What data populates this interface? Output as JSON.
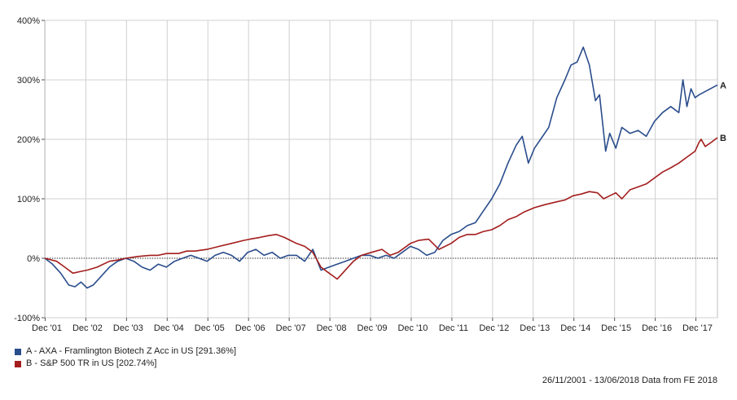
{
  "chart_data": {
    "type": "line",
    "y_unit": "%",
    "ylim": [
      -100,
      400
    ],
    "y_ticks": [
      {
        "value": 400,
        "label": "400%"
      },
      {
        "value": 300,
        "label": "300%"
      },
      {
        "value": 200,
        "label": "200%"
      },
      {
        "value": 100,
        "label": "100%"
      },
      {
        "value": 0,
        "label": "0%"
      },
      {
        "value": -100,
        "label": "-100%"
      }
    ],
    "xlim": [
      2001.91,
      2018.45
    ],
    "x_ticks": [
      {
        "value": 2001.92,
        "label": "Dec '01"
      },
      {
        "value": 2002.92,
        "label": "Dec '02"
      },
      {
        "value": 2003.92,
        "label": "Dec '03"
      },
      {
        "value": 2004.92,
        "label": "Dec '04"
      },
      {
        "value": 2005.92,
        "label": "Dec '05"
      },
      {
        "value": 2006.92,
        "label": "Dec '06"
      },
      {
        "value": 2007.92,
        "label": "Dec '07"
      },
      {
        "value": 2008.92,
        "label": "Dec '08"
      },
      {
        "value": 2009.92,
        "label": "Dec '09"
      },
      {
        "value": 2010.92,
        "label": "Dec '10"
      },
      {
        "value": 2011.92,
        "label": "Dec '11"
      },
      {
        "value": 2012.92,
        "label": "Dec '12"
      },
      {
        "value": 2013.92,
        "label": "Dec '13"
      },
      {
        "value": 2014.92,
        "label": "Dec '14"
      },
      {
        "value": 2015.92,
        "label": "Dec '15"
      },
      {
        "value": 2016.92,
        "label": "Dec '16"
      },
      {
        "value": 2017.92,
        "label": "Dec '17"
      }
    ],
    "grid": true,
    "zero_line": "dotted",
    "series": [
      {
        "id": "A",
        "name": "A - AXA - Framlington Biotech Z Acc in US [291.36%]",
        "end_label": "A",
        "color": "#2a4d8c",
        "points": [
          [
            2001.91,
            0
          ],
          [
            2002.1,
            -10
          ],
          [
            2002.3,
            -25
          ],
          [
            2002.5,
            -45
          ],
          [
            2002.65,
            -48
          ],
          [
            2002.8,
            -40
          ],
          [
            2002.95,
            -50
          ],
          [
            2003.1,
            -45
          ],
          [
            2003.3,
            -30
          ],
          [
            2003.5,
            -15
          ],
          [
            2003.7,
            -5
          ],
          [
            2003.9,
            0
          ],
          [
            2004.1,
            -5
          ],
          [
            2004.3,
            -15
          ],
          [
            2004.5,
            -20
          ],
          [
            2004.7,
            -10
          ],
          [
            2004.9,
            -15
          ],
          [
            2005.1,
            -5
          ],
          [
            2005.3,
            0
          ],
          [
            2005.5,
            5
          ],
          [
            2005.7,
            0
          ],
          [
            2005.9,
            -5
          ],
          [
            2006.1,
            5
          ],
          [
            2006.3,
            10
          ],
          [
            2006.5,
            5
          ],
          [
            2006.7,
            -5
          ],
          [
            2006.9,
            10
          ],
          [
            2007.1,
            15
          ],
          [
            2007.3,
            5
          ],
          [
            2007.5,
            10
          ],
          [
            2007.7,
            0
          ],
          [
            2007.9,
            5
          ],
          [
            2008.1,
            5
          ],
          [
            2008.3,
            -5
          ],
          [
            2008.5,
            15
          ],
          [
            2008.7,
            -20
          ],
          [
            2008.9,
            -15
          ],
          [
            2009.1,
            -10
          ],
          [
            2009.3,
            -5
          ],
          [
            2009.5,
            0
          ],
          [
            2009.7,
            5
          ],
          [
            2009.9,
            5
          ],
          [
            2010.1,
            0
          ],
          [
            2010.3,
            5
          ],
          [
            2010.5,
            0
          ],
          [
            2010.7,
            10
          ],
          [
            2010.9,
            20
          ],
          [
            2011.1,
            15
          ],
          [
            2011.3,
            5
          ],
          [
            2011.5,
            10
          ],
          [
            2011.7,
            30
          ],
          [
            2011.9,
            40
          ],
          [
            2012.1,
            45
          ],
          [
            2012.3,
            55
          ],
          [
            2012.5,
            60
          ],
          [
            2012.7,
            80
          ],
          [
            2012.9,
            100
          ],
          [
            2013.1,
            125
          ],
          [
            2013.3,
            160
          ],
          [
            2013.5,
            190
          ],
          [
            2013.65,
            205
          ],
          [
            2013.8,
            160
          ],
          [
            2013.95,
            185
          ],
          [
            2014.1,
            200
          ],
          [
            2014.3,
            220
          ],
          [
            2014.5,
            270
          ],
          [
            2014.7,
            300
          ],
          [
            2014.85,
            325
          ],
          [
            2015.0,
            330
          ],
          [
            2015.15,
            355
          ],
          [
            2015.3,
            325
          ],
          [
            2015.45,
            265
          ],
          [
            2015.55,
            275
          ],
          [
            2015.7,
            180
          ],
          [
            2015.8,
            210
          ],
          [
            2015.95,
            185
          ],
          [
            2016.1,
            220
          ],
          [
            2016.3,
            210
          ],
          [
            2016.5,
            215
          ],
          [
            2016.7,
            205
          ],
          [
            2016.9,
            230
          ],
          [
            2017.1,
            245
          ],
          [
            2017.3,
            255
          ],
          [
            2017.5,
            245
          ],
          [
            2017.6,
            300
          ],
          [
            2017.7,
            255
          ],
          [
            2017.8,
            285
          ],
          [
            2017.9,
            270
          ],
          [
            2018.0,
            275
          ],
          [
            2018.45,
            291.36
          ]
        ]
      },
      {
        "id": "B",
        "name": "B - S&P 500 TR in US [202.74%]",
        "end_label": "B",
        "color": "#a31d1d",
        "points": [
          [
            2001.91,
            0
          ],
          [
            2002.2,
            -5
          ],
          [
            2002.4,
            -15
          ],
          [
            2002.6,
            -25
          ],
          [
            2002.8,
            -22
          ],
          [
            2002.95,
            -20
          ],
          [
            2003.2,
            -15
          ],
          [
            2003.5,
            -5
          ],
          [
            2003.7,
            -3
          ],
          [
            2003.9,
            0
          ],
          [
            2004.2,
            3
          ],
          [
            2004.5,
            5
          ],
          [
            2004.7,
            5
          ],
          [
            2004.9,
            8
          ],
          [
            2005.2,
            8
          ],
          [
            2005.4,
            12
          ],
          [
            2005.6,
            12
          ],
          [
            2005.9,
            15
          ],
          [
            2006.2,
            20
          ],
          [
            2006.5,
            25
          ],
          [
            2006.8,
            30
          ],
          [
            2006.95,
            32
          ],
          [
            2007.2,
            35
          ],
          [
            2007.4,
            38
          ],
          [
            2007.6,
            40
          ],
          [
            2007.8,
            35
          ],
          [
            2007.95,
            30
          ],
          [
            2008.1,
            25
          ],
          [
            2008.3,
            20
          ],
          [
            2008.5,
            10
          ],
          [
            2008.7,
            -15
          ],
          [
            2008.9,
            -25
          ],
          [
            2009.0,
            -30
          ],
          [
            2009.1,
            -35
          ],
          [
            2009.3,
            -20
          ],
          [
            2009.5,
            -5
          ],
          [
            2009.7,
            5
          ],
          [
            2009.95,
            10
          ],
          [
            2010.2,
            15
          ],
          [
            2010.4,
            5
          ],
          [
            2010.6,
            10
          ],
          [
            2010.9,
            25
          ],
          [
            2011.1,
            30
          ],
          [
            2011.35,
            32
          ],
          [
            2011.6,
            15
          ],
          [
            2011.9,
            25
          ],
          [
            2012.1,
            35
          ],
          [
            2012.3,
            40
          ],
          [
            2012.5,
            40
          ],
          [
            2012.7,
            45
          ],
          [
            2012.9,
            48
          ],
          [
            2013.1,
            55
          ],
          [
            2013.3,
            65
          ],
          [
            2013.5,
            70
          ],
          [
            2013.7,
            78
          ],
          [
            2013.95,
            85
          ],
          [
            2014.2,
            90
          ],
          [
            2014.5,
            95
          ],
          [
            2014.7,
            98
          ],
          [
            2014.9,
            105
          ],
          [
            2015.1,
            108
          ],
          [
            2015.3,
            112
          ],
          [
            2015.5,
            110
          ],
          [
            2015.65,
            100
          ],
          [
            2015.8,
            105
          ],
          [
            2015.95,
            110
          ],
          [
            2016.1,
            100
          ],
          [
            2016.3,
            115
          ],
          [
            2016.5,
            120
          ],
          [
            2016.7,
            125
          ],
          [
            2016.9,
            135
          ],
          [
            2017.1,
            145
          ],
          [
            2017.3,
            152
          ],
          [
            2017.5,
            160
          ],
          [
            2017.7,
            170
          ],
          [
            2017.9,
            180
          ],
          [
            2018.0,
            195
          ],
          [
            2018.05,
            200
          ],
          [
            2018.15,
            188
          ],
          [
            2018.3,
            195
          ],
          [
            2018.45,
            202.74
          ]
        ]
      }
    ]
  },
  "footer": {
    "date_range": "26/11/2001 - 13/06/2018",
    "source": "Data from FE 2018"
  }
}
